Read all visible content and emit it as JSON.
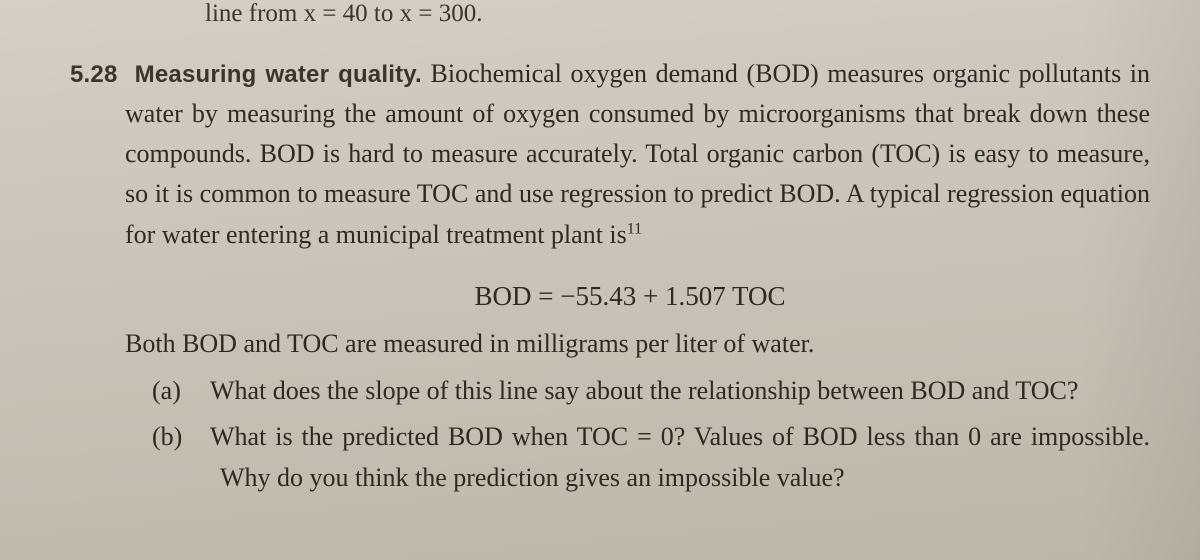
{
  "typography": {
    "body_font": "Georgia serif",
    "body_size_pt": 26,
    "bold_font": "Arial sans-serif",
    "bold_size_pt": 24,
    "line_height": 1.55,
    "text_color": "#2d2a23",
    "bold_color": "#3a362c"
  },
  "background": {
    "gradient_from": "#d4cfc7",
    "gradient_to": "#bdb6aa"
  },
  "top_fragment": "line from x = 40 to x = 300.",
  "problem": {
    "number": "5.28",
    "title": "Measuring water quality.",
    "body": "Biochemical oxygen demand (BOD) measures organic pollutants in water by measuring the amount of oxygen consumed by microorganisms that break down these compounds. BOD is hard to measure accurately. Total organic carbon (TOC) is easy to measure, so it is common to measure TOC and use regression to predict BOD. A typical regression equation for water entering a municipal treatment plant is",
    "footnote_mark": "11",
    "equation": "BOD = −55.43 + 1.507 TOC",
    "aux_line": "Both BOD and TOC are measured in milligrams per liter of water.",
    "parts": [
      {
        "label": "(a)",
        "text": "What does the slope of this line say about the relationship between BOD and TOC?"
      },
      {
        "label": "(b)",
        "text": "What is the predicted BOD when TOC = 0? Values of BOD less than 0 are impossible. Why do you think the prediction gives an impossible value?"
      }
    ]
  }
}
